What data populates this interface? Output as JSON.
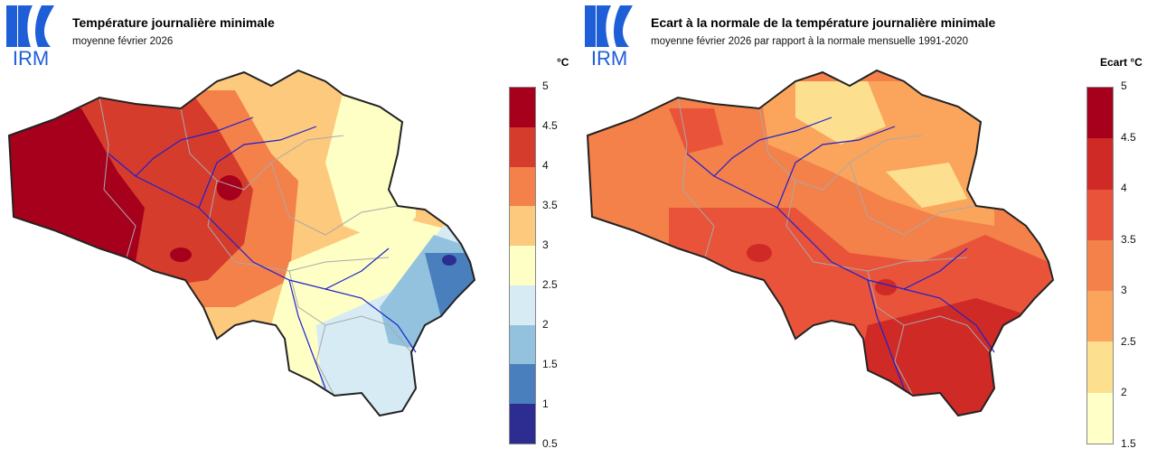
{
  "logo_text": "IRM",
  "colors": {
    "logo_blue": "#1e5fd8",
    "border": "#222222",
    "province_border": "#a9a9a9",
    "river": "#1f1fd0"
  },
  "left": {
    "title": "Température journalière minimale",
    "subtitle": "moyenne février 2026",
    "unit": "°C",
    "legend": {
      "ticks": [
        "5",
        "4.5",
        "4",
        "3.5",
        "3",
        "2.5",
        "2",
        "1.5",
        "1",
        "0.5"
      ],
      "colors": [
        "#a6001d",
        "#d63c2c",
        "#f4804a",
        "#fdc97c",
        "#feffc4",
        "#d6ebf3",
        "#92c2de",
        "#4a7fbd",
        "#2d2c91"
      ]
    }
  },
  "right": {
    "title": "Ecart à la normale de la température journalière minimale",
    "subtitle": "moyenne février 2026 par rapport à la normale mensuelle 1991-2020",
    "unit": "Ecart °C",
    "legend": {
      "ticks": [
        "5",
        "4.5",
        "4",
        "3.5",
        "3",
        "2.5",
        "2",
        "1.5"
      ],
      "colors": [
        "#a6001d",
        "#cf2a26",
        "#e8533a",
        "#f4804a",
        "#fba55c",
        "#fde08f",
        "#ffffc8"
      ]
    }
  }
}
